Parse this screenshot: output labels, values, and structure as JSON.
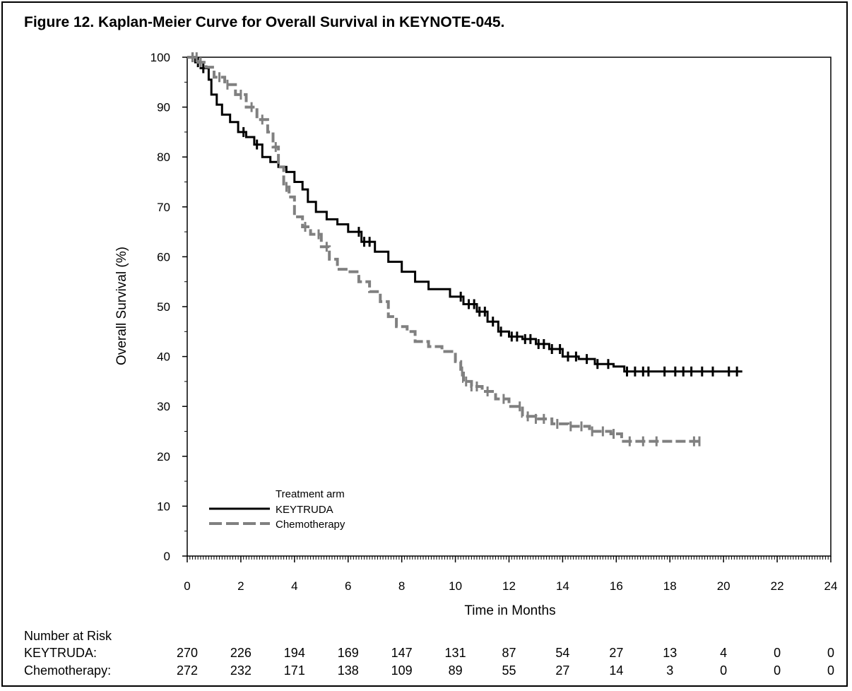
{
  "chart_data": {
    "type": "line",
    "title": "Figure 12. Kaplan-Meier Curve for Overall Survival in KEYNOTE-045.",
    "xlabel": "Time in Months",
    "ylabel": "Overall Survival (%)",
    "xlim": [
      0,
      24
    ],
    "ylim": [
      0,
      100
    ],
    "xticks": [
      0,
      2,
      4,
      6,
      8,
      10,
      12,
      14,
      16,
      18,
      20,
      22,
      24
    ],
    "yticks": [
      0,
      10,
      20,
      30,
      40,
      50,
      60,
      70,
      80,
      90,
      100
    ],
    "legend": {
      "title": "Treatment arm",
      "position": "bottom-left"
    },
    "series": [
      {
        "name": "KEYTRUDA",
        "color": "#000000",
        "dash": "solid",
        "points": [
          [
            0,
            100
          ],
          [
            0.3,
            99
          ],
          [
            0.5,
            97.8
          ],
          [
            0.8,
            95.5
          ],
          [
            0.9,
            92.5
          ],
          [
            1.1,
            90.5
          ],
          [
            1.3,
            88.5
          ],
          [
            1.6,
            87
          ],
          [
            1.9,
            85
          ],
          [
            2.2,
            84
          ],
          [
            2.5,
            82.5
          ],
          [
            2.8,
            80
          ],
          [
            3.1,
            79
          ],
          [
            3.4,
            78
          ],
          [
            3.7,
            77
          ],
          [
            4.0,
            75
          ],
          [
            4.3,
            73.5
          ],
          [
            4.5,
            71
          ],
          [
            4.8,
            69
          ],
          [
            5.2,
            67.5
          ],
          [
            5.6,
            66.5
          ],
          [
            6.0,
            65
          ],
          [
            6.5,
            63
          ],
          [
            7.0,
            61
          ],
          [
            7.5,
            59
          ],
          [
            8.0,
            57
          ],
          [
            8.5,
            55
          ],
          [
            9.0,
            53.5
          ],
          [
            9.5,
            53.5
          ],
          [
            9.8,
            52
          ],
          [
            10.3,
            50.5
          ],
          [
            10.8,
            49
          ],
          [
            11.2,
            47
          ],
          [
            11.6,
            45
          ],
          [
            12.0,
            44
          ],
          [
            12.5,
            43.5
          ],
          [
            13.0,
            42.5
          ],
          [
            13.5,
            41.5
          ],
          [
            14.0,
            40
          ],
          [
            14.6,
            39.5
          ],
          [
            15.2,
            38.5
          ],
          [
            15.9,
            38
          ],
          [
            16.3,
            37
          ],
          [
            17.0,
            37
          ],
          [
            18.0,
            37
          ],
          [
            19.0,
            37
          ],
          [
            20.0,
            37
          ],
          [
            20.7,
            37
          ]
        ],
        "censor_x": [
          0.2,
          0.4,
          0.6,
          2.1,
          2.6,
          6.4,
          6.6,
          6.8,
          10.2,
          10.5,
          10.7,
          10.9,
          11.1,
          11.4,
          11.7,
          12.1,
          12.3,
          12.6,
          12.8,
          13.1,
          13.3,
          13.6,
          13.9,
          14.2,
          14.5,
          14.9,
          15.3,
          15.7,
          16.4,
          16.7,
          17.0,
          17.2,
          17.8,
          18.2,
          18.5,
          18.8,
          19.2,
          19.6,
          20.2,
          20.5
        ]
      },
      {
        "name": "Chemotherapy",
        "color": "#808080",
        "dash": "dashed",
        "points": [
          [
            0,
            100
          ],
          [
            0.4,
            99
          ],
          [
            0.7,
            98
          ],
          [
            1.0,
            96
          ],
          [
            1.4,
            94.5
          ],
          [
            1.8,
            92.5
          ],
          [
            2.2,
            90
          ],
          [
            2.6,
            87.5
          ],
          [
            3.0,
            85
          ],
          [
            3.2,
            82
          ],
          [
            3.4,
            78
          ],
          [
            3.6,
            74
          ],
          [
            3.8,
            72
          ],
          [
            4.0,
            68
          ],
          [
            4.3,
            66
          ],
          [
            4.6,
            64.5
          ],
          [
            5.0,
            62
          ],
          [
            5.3,
            59.5
          ],
          [
            5.6,
            57.5
          ],
          [
            6.0,
            57
          ],
          [
            6.4,
            55
          ],
          [
            6.8,
            53
          ],
          [
            7.2,
            51
          ],
          [
            7.5,
            48
          ],
          [
            7.8,
            46
          ],
          [
            8.2,
            45
          ],
          [
            8.5,
            43
          ],
          [
            9.0,
            42
          ],
          [
            9.5,
            41
          ],
          [
            10.0,
            39
          ],
          [
            10.2,
            37
          ],
          [
            10.3,
            35
          ],
          [
            10.6,
            34
          ],
          [
            11.0,
            33
          ],
          [
            11.5,
            31.5
          ],
          [
            12.0,
            30
          ],
          [
            12.5,
            28
          ],
          [
            13.0,
            27.5
          ],
          [
            13.6,
            26.5
          ],
          [
            14.2,
            26
          ],
          [
            15.0,
            25
          ],
          [
            15.8,
            24.5
          ],
          [
            16.2,
            23
          ],
          [
            17.0,
            23
          ],
          [
            18.0,
            23
          ],
          [
            19.1,
            23
          ]
        ],
        "censor_x": [
          0.2,
          0.35,
          0.5,
          1.2,
          1.5,
          2.0,
          2.4,
          2.8,
          3.3,
          3.7,
          4.4,
          4.9,
          5.2,
          10.25,
          10.4,
          10.6,
          10.8,
          11.2,
          11.8,
          12.4,
          12.7,
          13.0,
          13.3,
          13.8,
          14.3,
          14.7,
          15.1,
          15.5,
          15.9,
          16.5,
          17.0,
          17.5,
          18.9,
          19.1
        ]
      }
    ],
    "risk_table": {
      "header": "Number at Risk",
      "x": [
        0,
        2,
        4,
        6,
        8,
        10,
        12,
        14,
        16,
        18,
        20,
        22,
        24
      ],
      "rows": [
        {
          "label": "KEYTRUDA:",
          "values": [
            "270",
            "226",
            "194",
            "169",
            "147",
            "131",
            "87",
            "54",
            "27",
            "13",
            "4",
            "0",
            "0"
          ]
        },
        {
          "label": "Chemotherapy:",
          "values": [
            "272",
            "232",
            "171",
            "138",
            "109",
            "89",
            "55",
            "27",
            "14",
            "3",
            "0",
            "0",
            "0"
          ]
        }
      ]
    }
  }
}
